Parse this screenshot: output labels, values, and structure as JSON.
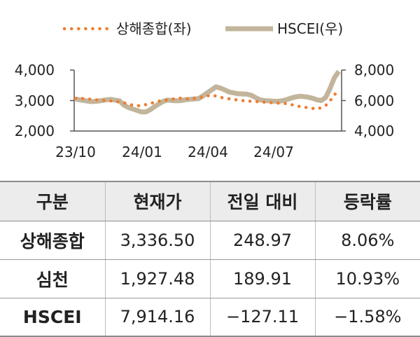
{
  "chart_data": {
    "type": "line",
    "x_ticks": [
      "23/10",
      "24/01",
      "24/04",
      "24/07"
    ],
    "y_left": {
      "ticks": [
        "2,000",
        "3,000",
        "4,000"
      ],
      "range": [
        2000,
        4000
      ]
    },
    "y_right": {
      "ticks": [
        "4,000",
        "6,000",
        "8,000"
      ],
      "range": [
        4000,
        8000
      ]
    },
    "legend_placement": "top-center",
    "series": [
      {
        "name": "상해종합(좌)",
        "axis": "left",
        "color": "#ee7d31",
        "style": "dotted",
        "values": [
          3070,
          3080,
          3060,
          3050,
          3040,
          3020,
          3010,
          3000,
          2990,
          2975,
          2960,
          2940,
          2900,
          2860,
          2840,
          2830,
          2850,
          2880,
          2920,
          2960,
          2990,
          3010,
          3030,
          3050,
          3070,
          3080,
          3060,
          3050,
          3070,
          3090,
          3120,
          3150,
          3180,
          3150,
          3110,
          3080,
          3060,
          3040,
          3020,
          3000,
          2990,
          2980,
          2970,
          2960,
          2950,
          2940,
          2930,
          2920,
          2910,
          2900,
          2900,
          2860,
          2830,
          2800,
          2780,
          2760,
          2740,
          2720,
          2780,
          2850,
          3000,
          3200,
          3280
        ]
      },
      {
        "name": "HSCEI(우)",
        "axis": "right",
        "color": "#c2b59b",
        "style": "solid",
        "values": [
          6100,
          6040,
          6000,
          5950,
          5930,
          5960,
          6000,
          6050,
          6080,
          6030,
          5980,
          5700,
          5550,
          5450,
          5350,
          5250,
          5250,
          5400,
          5600,
          5780,
          5950,
          6030,
          6000,
          5980,
          6000,
          6050,
          6080,
          6100,
          6120,
          6300,
          6500,
          6700,
          6900,
          6820,
          6700,
          6560,
          6500,
          6450,
          6430,
          6420,
          6350,
          6200,
          6050,
          6000,
          5980,
          5960,
          5950,
          5980,
          6050,
          6150,
          6230,
          6280,
          6260,
          6220,
          6150,
          6050,
          6000,
          6200,
          6800,
          7500,
          7914
        ]
      }
    ]
  },
  "table": {
    "headers": [
      "구분",
      "현재가",
      "전일 대비",
      "등락률"
    ],
    "rows": [
      [
        "상해종합",
        "3,336.50",
        "248.97",
        "8.06%"
      ],
      [
        "심천",
        "1,927.48",
        "189.91",
        "10.93%"
      ],
      [
        "HSCEI",
        "7,914.16",
        "−127.11",
        "−1.58%"
      ]
    ]
  }
}
